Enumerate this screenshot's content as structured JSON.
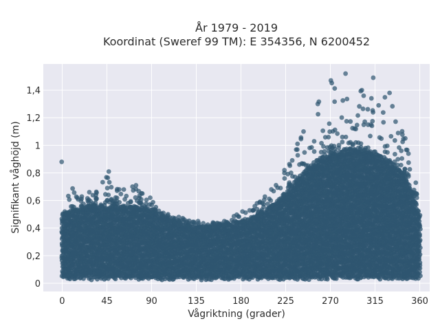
{
  "chart_data": {
    "type": "scatter",
    "title_lines": [
      "År 1979 - 2019",
      "Koordinat (Sweref 99 TM): E 354356, N 6200452"
    ],
    "xlabel": "Vågriktning (grader)",
    "ylabel": "Signifikant våghöjd (m)",
    "xlim": [
      -19,
      370
    ],
    "ylim": [
      -0.06,
      1.59
    ],
    "x_ticks": [
      0,
      45,
      90,
      135,
      180,
      225,
      270,
      315,
      360
    ],
    "x_tick_labels": [
      "0",
      "45",
      "90",
      "135",
      "180",
      "225",
      "270",
      "315",
      "360"
    ],
    "y_ticks": [
      0,
      0.2,
      0.4,
      0.6,
      0.8,
      1.0,
      1.2,
      1.4
    ],
    "y_tick_labels": [
      "0",
      "0,2",
      "0,4",
      "0,6",
      "0,8",
      "1",
      "1,2",
      "1,4"
    ],
    "grid": true,
    "colors": {
      "marker": "#2f5670",
      "plot_bg": "#e8e8f1",
      "grid": "#ffffff"
    },
    "envelope": {
      "direction_deg": [
        0,
        15,
        30,
        45,
        60,
        75,
        90,
        105,
        120,
        135,
        150,
        165,
        180,
        195,
        210,
        225,
        240,
        255,
        270,
        285,
        300,
        315,
        330,
        345,
        360
      ],
      "dense_upper_m": [
        0.5,
        0.53,
        0.56,
        0.56,
        0.55,
        0.55,
        0.52,
        0.46,
        0.42,
        0.4,
        0.4,
        0.42,
        0.44,
        0.48,
        0.55,
        0.65,
        0.78,
        0.88,
        0.94,
        0.97,
        0.97,
        0.95,
        0.88,
        0.8,
        0.5
      ],
      "outer_max_m": [
        0.88,
        0.62,
        0.66,
        0.81,
        0.68,
        0.71,
        0.62,
        0.5,
        0.48,
        0.45,
        0.44,
        0.45,
        0.52,
        0.58,
        0.68,
        0.82,
        1.1,
        1.3,
        1.47,
        1.52,
        1.4,
        1.49,
        1.38,
        1.05,
        0.62
      ]
    }
  }
}
